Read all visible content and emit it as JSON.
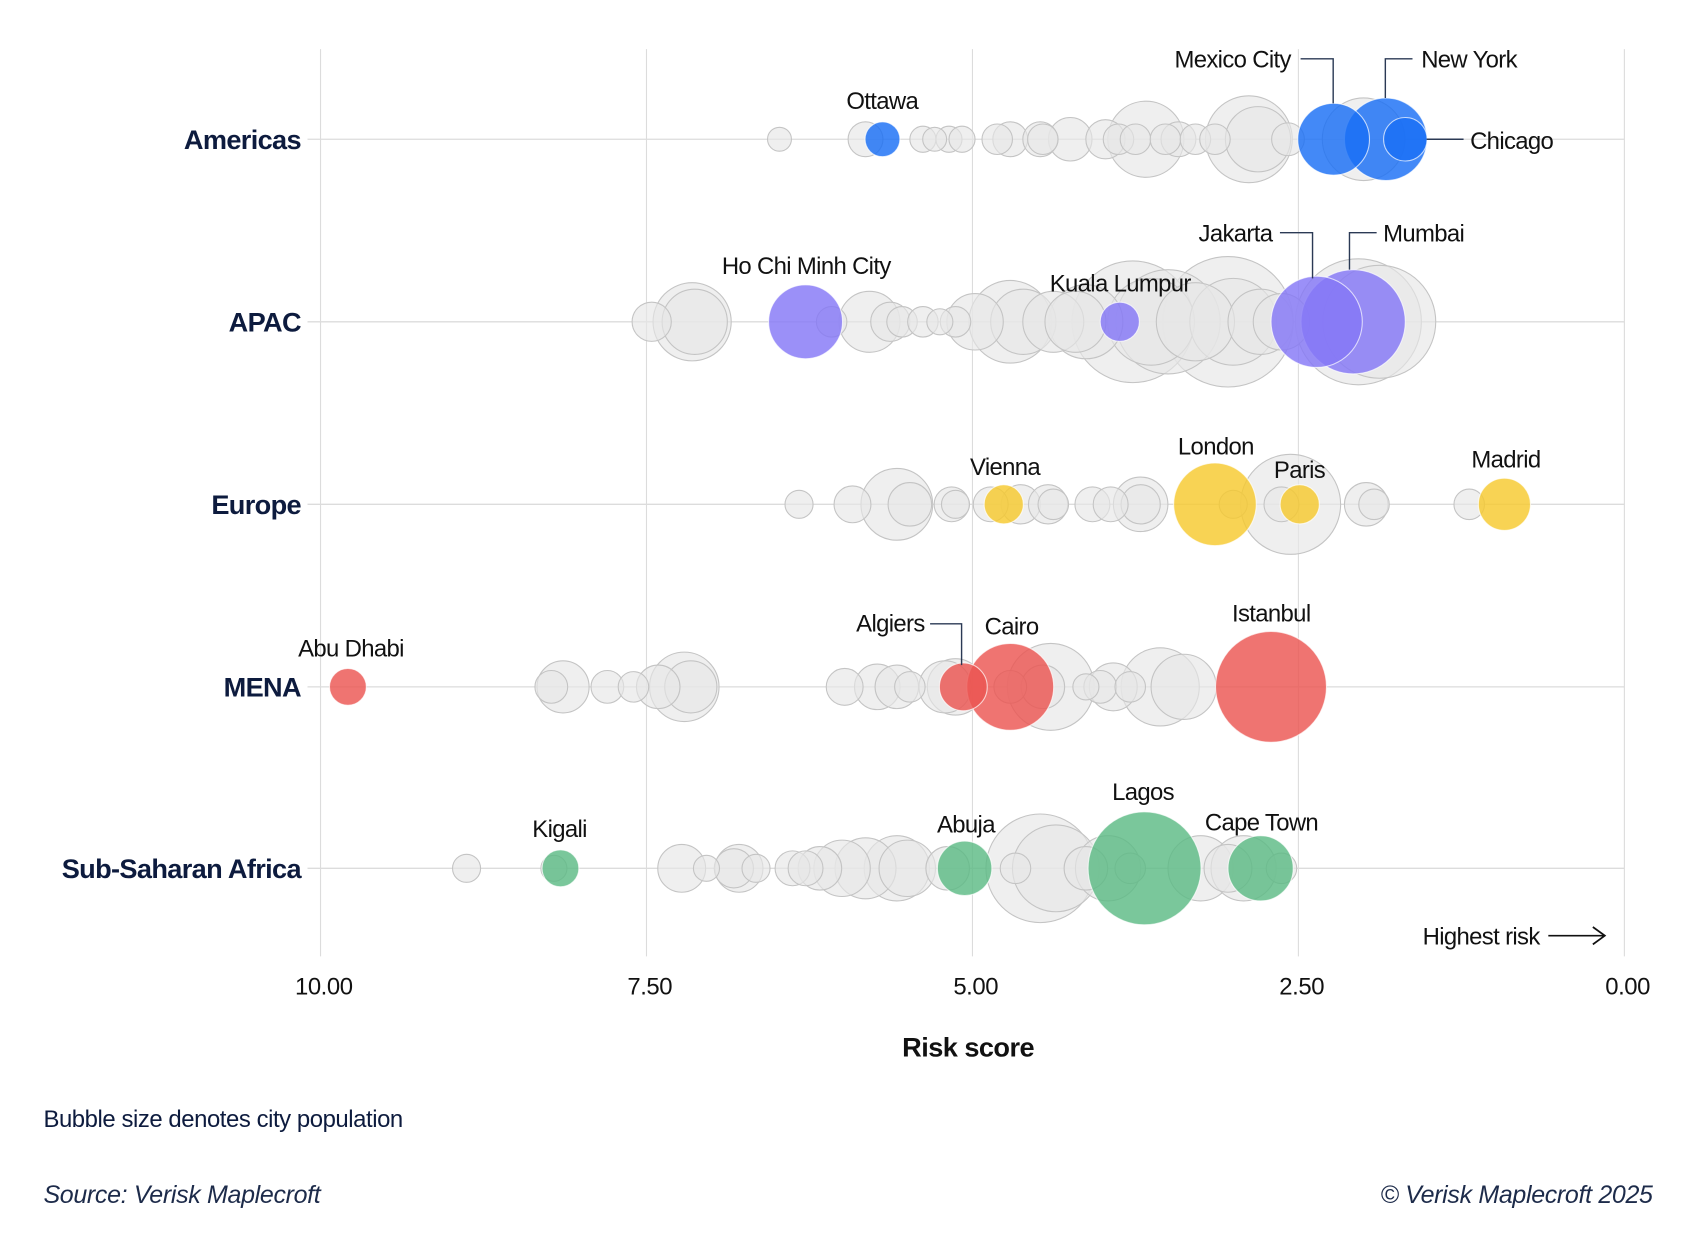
{
  "chart_data": {
    "type": "scatter",
    "subtype": "bubble",
    "xlabel": "Risk score",
    "xlim": [
      10,
      0
    ],
    "x_reversed": true,
    "xticks": [
      "10.00",
      "7.50",
      "5.00",
      "2.50",
      "0.00"
    ],
    "grid": true,
    "direction_note": "Highest risk",
    "size_note": "Bubble size denotes city population",
    "source": "Source: Verisk Maplecroft",
    "copyright": "© Verisk Maplecroft 2025",
    "grey_color": "#e6e6e6",
    "categories": [
      "Americas",
      "APAC",
      "Europe",
      "MENA",
      "Sub-Saharan Africa"
    ],
    "series": [
      {
        "region": "Americas",
        "color": "#1a6ff5",
        "highlighted": [
          {
            "city": "Ottawa",
            "score": 5.69,
            "pop": 3.4
          },
          {
            "city": "Mexico City",
            "score": 2.23,
            "pop": 14.4
          },
          {
            "city": "New York",
            "score": 1.83,
            "pop": 19.1
          },
          {
            "city": "Chicago",
            "score": 1.68,
            "pop": 5.3
          }
        ],
        "other": [
          [
            6.48,
            1.6
          ],
          [
            5.82,
            3.4
          ],
          [
            5.38,
            1.9
          ],
          [
            5.29,
            1.6
          ],
          [
            5.18,
            1.9
          ],
          [
            5.08,
            1.9
          ],
          [
            4.81,
            2.6
          ],
          [
            4.71,
            3.4
          ],
          [
            4.48,
            3.4
          ],
          [
            4.46,
            2.6
          ],
          [
            4.25,
            5.3
          ],
          [
            3.98,
            4.3
          ],
          [
            3.88,
            2.6
          ],
          [
            3.75,
            2.6
          ],
          [
            3.67,
            16.2
          ],
          [
            3.52,
            2.6
          ],
          [
            3.42,
            3.4
          ],
          [
            3.29,
            2.6
          ],
          [
            3.14,
            2.6
          ],
          [
            2.88,
            21.1
          ],
          [
            2.81,
            11.9
          ],
          [
            2.58,
            3.0
          ],
          [
            2.0,
            19.1
          ]
        ]
      },
      {
        "region": "APAC",
        "color": "#8577f7",
        "highlighted": [
          {
            "city": "Ho Chi Minh City",
            "score": 6.28,
            "pop": 15.3
          },
          {
            "city": "Kuala Lumpur",
            "score": 3.87,
            "pop": 4.3
          },
          {
            "city": "Jakarta",
            "score": 2.36,
            "pop": 23.3
          },
          {
            "city": "Mumbai",
            "score": 2.08,
            "pop": 30.4
          }
        ],
        "other": [
          [
            7.46,
            4.3
          ],
          [
            7.15,
            17.1
          ],
          [
            7.13,
            11.9
          ],
          [
            6.08,
            2.6
          ],
          [
            5.79,
            10.4
          ],
          [
            5.63,
            4.3
          ],
          [
            5.54,
            2.6
          ],
          [
            5.38,
            2.6
          ],
          [
            5.25,
            1.9
          ],
          [
            5.13,
            2.6
          ],
          [
            4.98,
            8.9
          ],
          [
            4.71,
            19.1
          ],
          [
            4.61,
            11.9
          ],
          [
            4.38,
            10.4
          ],
          [
            4.21,
            10.4
          ],
          [
            4.13,
            15.3
          ],
          [
            3.77,
            41.4
          ],
          [
            3.63,
            21.1
          ],
          [
            3.5,
            30.4
          ],
          [
            3.29,
            17.1
          ],
          [
            3.04,
            47.6
          ],
          [
            3.0,
            21.1
          ],
          [
            2.79,
            11.9
          ],
          [
            2.63,
            8.9
          ],
          [
            2.04,
            44.4
          ],
          [
            1.88,
            35.7
          ]
        ]
      },
      {
        "region": "Europe",
        "color": "#f7c92e",
        "highlighted": [
          {
            "city": "Vienna",
            "score": 4.76,
            "pop": 4.3
          },
          {
            "city": "London",
            "score": 3.14,
            "pop": 19.1
          },
          {
            "city": "Paris",
            "score": 2.49,
            "pop": 4.3
          },
          {
            "city": "Madrid",
            "score": 0.92,
            "pop": 7.6
          }
        ],
        "other": [
          [
            6.33,
            2.2
          ],
          [
            5.92,
            3.8
          ],
          [
            5.58,
            14.4
          ],
          [
            5.48,
            5.3
          ],
          [
            5.16,
            3.4
          ],
          [
            5.13,
            2.2
          ],
          [
            4.86,
            3.4
          ],
          [
            4.63,
            4.3
          ],
          [
            4.42,
            4.3
          ],
          [
            4.38,
            2.6
          ],
          [
            4.08,
            3.4
          ],
          [
            3.94,
            3.4
          ],
          [
            3.71,
            8.3
          ],
          [
            3.71,
            4.3
          ],
          [
            3.0,
            2.2
          ],
          [
            2.56,
            28.0
          ],
          [
            2.63,
            3.4
          ],
          [
            1.98,
            5.3
          ],
          [
            1.92,
            2.6
          ],
          [
            1.19,
            2.6
          ]
        ]
      },
      {
        "region": "MENA",
        "color": "#ec5652",
        "highlighted": [
          {
            "city": "Abu Dhabi",
            "score": 9.79,
            "pop": 3.8
          },
          {
            "city": "Algiers",
            "score": 5.07,
            "pop": 6.4
          },
          {
            "city": "Cairo",
            "score": 4.71,
            "pop": 21.1
          },
          {
            "city": "Istanbul",
            "score": 2.71,
            "pop": 34.4
          }
        ],
        "other": [
          [
            8.23,
            3.0
          ],
          [
            8.14,
            7.6
          ],
          [
            7.8,
            3.0
          ],
          [
            7.6,
            2.6
          ],
          [
            7.41,
            5.3
          ],
          [
            7.21,
            13.5
          ],
          [
            7.16,
            7.6
          ],
          [
            5.98,
            3.8
          ],
          [
            5.73,
            5.8
          ],
          [
            5.58,
            5.3
          ],
          [
            5.48,
            2.6
          ],
          [
            5.21,
            7.6
          ],
          [
            5.13,
            8.9
          ],
          [
            4.71,
            3.0
          ],
          [
            4.4,
            21.1
          ],
          [
            4.46,
            5.3
          ],
          [
            4.13,
            1.9
          ],
          [
            4.02,
            3.0
          ],
          [
            3.92,
            6.4
          ],
          [
            3.79,
            2.6
          ],
          [
            3.56,
            17.1
          ],
          [
            3.38,
            11.9
          ]
        ]
      },
      {
        "region": "Sub-Saharan Africa",
        "color": "#5dbb85",
        "highlighted": [
          {
            "city": "Kigali",
            "score": 8.16,
            "pop": 3.8
          },
          {
            "city": "Abuja",
            "score": 5.06,
            "pop": 8.3
          },
          {
            "city": "Lagos",
            "score": 3.68,
            "pop": 35.7
          },
          {
            "city": "Cape Town",
            "score": 2.79,
            "pop": 11.9
          }
        ],
        "other": [
          [
            8.88,
            2.2
          ],
          [
            8.21,
            1.9
          ],
          [
            7.23,
            6.4
          ],
          [
            7.04,
            1.9
          ],
          [
            6.83,
            4.3
          ],
          [
            6.79,
            6.4
          ],
          [
            6.66,
            2.2
          ],
          [
            6.38,
            3.4
          ],
          [
            6.28,
            3.4
          ],
          [
            6.17,
            5.3
          ],
          [
            6.0,
            8.9
          ],
          [
            5.82,
            10.4
          ],
          [
            5.58,
            11.9
          ],
          [
            5.5,
            8.9
          ],
          [
            5.19,
            5.3
          ],
          [
            4.67,
            2.6
          ],
          [
            4.48,
            33.0
          ],
          [
            4.36,
            21.1
          ],
          [
            4.13,
            5.3
          ],
          [
            3.96,
            11.9
          ],
          [
            3.79,
            2.6
          ],
          [
            3.25,
            11.9
          ],
          [
            3.04,
            6.4
          ],
          [
            2.92,
            11.9
          ],
          [
            2.63,
            2.6
          ]
        ]
      }
    ]
  }
}
